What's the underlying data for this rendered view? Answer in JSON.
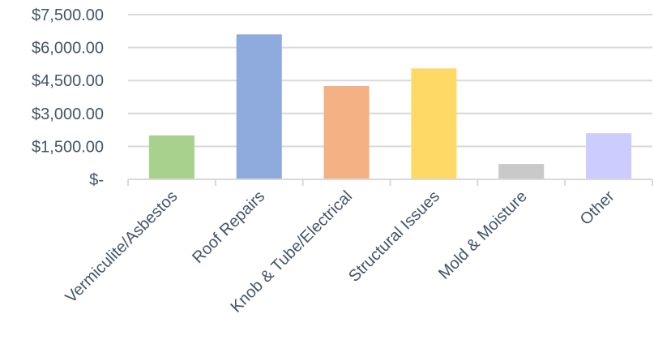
{
  "chart_data": {
    "type": "bar",
    "categories": [
      "Vermiculite/Asbestos",
      "Roof Repairs",
      "Knob & Tube/Electrical",
      "Structural Issues",
      "Mold & Moisture",
      "Other"
    ],
    "values": [
      2000,
      6600,
      4250,
      5050,
      700,
      2100
    ],
    "colors": [
      "#a9d18e",
      "#8faadc",
      "#f4b183",
      "#ffd966",
      "#c9c9c9",
      "#ccccff"
    ],
    "ylim": [
      0,
      7500
    ],
    "yticks": [
      0,
      1500,
      3000,
      4500,
      6000,
      7500
    ],
    "ytick_labels": [
      "$-",
      "$1,500.00",
      "$3,000.00",
      "$4,500.00",
      "$6,000.00",
      "$7,500.00"
    ],
    "grid": true,
    "title": "",
    "xlabel": "",
    "ylabel": ""
  }
}
